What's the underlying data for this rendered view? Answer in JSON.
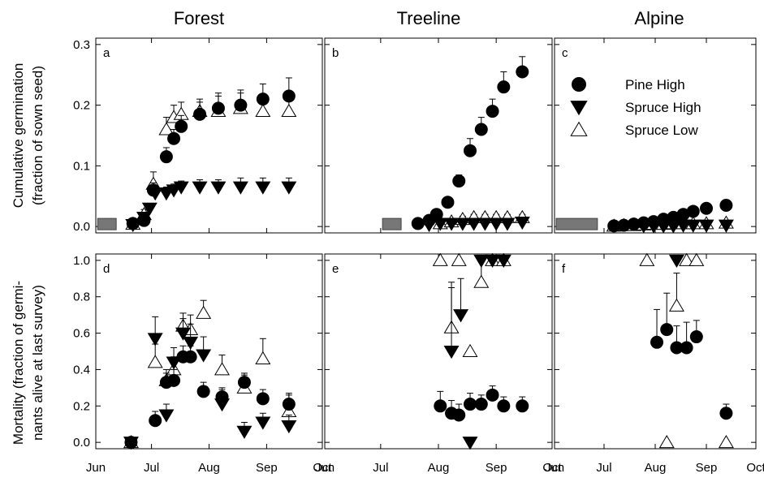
{
  "chart_data": {
    "type": "scatter",
    "columns": [
      "Forest",
      "Treeline",
      "Alpine"
    ],
    "x_ticks": [
      "Jun",
      "Jul",
      "Aug",
      "Sep",
      "Oct"
    ],
    "x_tick_days": [
      152,
      182,
      213,
      244,
      274
    ],
    "xlim": [
      152,
      274
    ],
    "rows": [
      {
        "ylabel_lines": [
          "Cumulative germination",
          "(fraction of sown seed)"
        ],
        "ylim": [
          0,
          0.3
        ],
        "yticks": [
          0.0,
          0.1,
          0.2,
          0.3
        ],
        "ytick_labels": [
          "0.0",
          "0.1",
          "0.2",
          "0.3"
        ]
      },
      {
        "ylabel_lines": [
          "Mortality (fraction of germi-",
          "nants alive at last survey)"
        ],
        "ylim": [
          0,
          1.0
        ],
        "yticks": [
          0.0,
          0.2,
          0.4,
          0.6,
          0.8,
          1.0
        ],
        "ytick_labels": [
          "0.0",
          "0.2",
          "0.4",
          "0.6",
          "0.8",
          "1.0"
        ]
      }
    ],
    "legend": {
      "placement": "panel c, top-right",
      "entries": [
        {
          "label": "Pine High",
          "marker": "circle-filled"
        },
        {
          "label": "Spruce High",
          "marker": "triangle-down-filled"
        },
        {
          "label": "Spruce Low",
          "marker": "triangle-up-open"
        }
      ]
    },
    "panels": [
      {
        "label": "a",
        "row": 0,
        "col": 0,
        "sowing_period": [
          153,
          163
        ],
        "series": [
          {
            "name": "Pine High",
            "points": [
              [
                172,
                0.005,
                0.004
              ],
              [
                178,
                0.01,
                0.005
              ],
              [
                183,
                0.06,
                0.012
              ],
              [
                190,
                0.115,
                0.015
              ],
              [
                194,
                0.145,
                0.015
              ],
              [
                198,
                0.165,
                0.018
              ],
              [
                208,
                0.185,
                0.02
              ],
              [
                218,
                0.195,
                0.025
              ],
              [
                230,
                0.2,
                0.025
              ],
              [
                242,
                0.21,
                0.025
              ],
              [
                256,
                0.215,
                0.03
              ]
            ]
          },
          {
            "name": "Spruce High",
            "points": [
              [
                172,
                0.003,
                0.003
              ],
              [
                178,
                0.015,
                0.005
              ],
              [
                181,
                0.03,
                0.006
              ],
              [
                184,
                0.055,
                0.01
              ],
              [
                190,
                0.055,
                0.01
              ],
              [
                194,
                0.06,
                0.01
              ],
              [
                198,
                0.065,
                0.01
              ],
              [
                208,
                0.065,
                0.012
              ],
              [
                218,
                0.065,
                0.012
              ],
              [
                230,
                0.065,
                0.015
              ],
              [
                242,
                0.065,
                0.015
              ],
              [
                256,
                0.065,
                0.015
              ]
            ]
          },
          {
            "name": "Spruce Low",
            "points": [
              [
                172,
                0.004,
                0.003
              ],
              [
                178,
                0.02,
                0.008
              ],
              [
                183,
                0.07,
                0.02
              ],
              [
                190,
                0.16,
                0.02
              ],
              [
                194,
                0.18,
                0.02
              ],
              [
                198,
                0.185,
                0.02
              ],
              [
                208,
                0.19,
                0.02
              ],
              [
                218,
                0.19,
                0.025
              ],
              [
                230,
                0.195,
                0.025
              ],
              [
                242,
                0.19,
                0.025
              ],
              [
                256,
                0.19,
                0.03
              ]
            ]
          }
        ]
      },
      {
        "label": "b",
        "row": 0,
        "col": 1,
        "sowing_period": [
          183,
          193
        ],
        "series": [
          {
            "name": "Pine High",
            "points": [
              [
                202,
                0.005,
                0.003
              ],
              [
                208,
                0.01,
                0.005
              ],
              [
                212,
                0.02,
                0.006
              ],
              [
                218,
                0.04,
                0.008
              ],
              [
                224,
                0.075,
                0.01
              ],
              [
                230,
                0.125,
                0.02
              ],
              [
                236,
                0.16,
                0.02
              ],
              [
                242,
                0.19,
                0.02
              ],
              [
                248,
                0.23,
                0.025
              ],
              [
                258,
                0.255,
                0.025
              ]
            ]
          },
          {
            "name": "Spruce High",
            "points": [
              [
                208,
                0.003,
                0.002
              ],
              [
                214,
                0.005,
                0.003
              ],
              [
                220,
                0.005,
                0.003
              ],
              [
                226,
                0.005,
                0.003
              ],
              [
                232,
                0.005,
                0.003
              ],
              [
                238,
                0.005,
                0.003
              ],
              [
                244,
                0.005,
                0.003
              ],
              [
                250,
                0.005,
                0.003
              ],
              [
                258,
                0.007,
                0.003
              ]
            ]
          },
          {
            "name": "Spruce Low",
            "points": [
              [
                214,
                0.005,
                0.003
              ],
              [
                220,
                0.008,
                0.004
              ],
              [
                226,
                0.012,
                0.005
              ],
              [
                232,
                0.015,
                0.005
              ],
              [
                238,
                0.015,
                0.005
              ],
              [
                244,
                0.015,
                0.005
              ],
              [
                250,
                0.015,
                0.005
              ],
              [
                258,
                0.015,
                0.005
              ]
            ]
          }
        ]
      },
      {
        "label": "c",
        "row": 0,
        "col": 2,
        "sowing_period": [
          153,
          178
        ],
        "series": [
          {
            "name": "Pine High",
            "points": [
              [
                188,
                0.001,
                0.001
              ],
              [
                194,
                0.002,
                0.001
              ],
              [
                200,
                0.004,
                0.002
              ],
              [
                206,
                0.006,
                0.002
              ],
              [
                212,
                0.008,
                0.003
              ],
              [
                218,
                0.012,
                0.003
              ],
              [
                224,
                0.015,
                0.004
              ],
              [
                230,
                0.02,
                0.004
              ],
              [
                236,
                0.025,
                0.005
              ],
              [
                244,
                0.03,
                0.005
              ],
              [
                256,
                0.035,
                0.006
              ]
            ]
          },
          {
            "name": "Spruce High",
            "points": [
              [
                206,
                0.001,
                0.001
              ],
              [
                212,
                0.001,
                0.001
              ],
              [
                218,
                0.001,
                0.001
              ],
              [
                224,
                0.001,
                0.001
              ],
              [
                230,
                0.002,
                0.001
              ],
              [
                236,
                0.002,
                0.001
              ],
              [
                244,
                0.002,
                0.001
              ],
              [
                256,
                0.002,
                0.001
              ]
            ]
          },
          {
            "name": "Spruce Low",
            "points": [
              [
                188,
                0.001,
                0.001
              ],
              [
                194,
                0.002,
                0.001
              ],
              [
                200,
                0.002,
                0.001
              ],
              [
                206,
                0.003,
                0.001
              ],
              [
                212,
                0.004,
                0.002
              ],
              [
                218,
                0.004,
                0.002
              ],
              [
                224,
                0.005,
                0.002
              ],
              [
                230,
                0.005,
                0.002
              ],
              [
                236,
                0.005,
                0.002
              ],
              [
                244,
                0.005,
                0.002
              ],
              [
                256,
                0.006,
                0.002
              ]
            ]
          }
        ]
      },
      {
        "label": "d",
        "row": 1,
        "col": 0,
        "series": [
          {
            "name": "Pine High",
            "points": [
              [
                171,
                0.0,
                0.0
              ],
              [
                184,
                0.12,
                0.05
              ],
              [
                190,
                0.33,
                0.05
              ],
              [
                194,
                0.34,
                0.06
              ],
              [
                199,
                0.47,
                0.06
              ],
              [
                203,
                0.47,
                0.06
              ],
              [
                210,
                0.28,
                0.05
              ],
              [
                220,
                0.25,
                0.05
              ],
              [
                232,
                0.33,
                0.05
              ],
              [
                242,
                0.24,
                0.05
              ],
              [
                256,
                0.21,
                0.05
              ]
            ]
          },
          {
            "name": "Spruce High",
            "points": [
              [
                171,
                0.0,
                0.0
              ],
              [
                184,
                0.57,
                0.12
              ],
              [
                190,
                0.15,
                0.06
              ],
              [
                194,
                0.44,
                0.08
              ],
              [
                199,
                0.6,
                0.08
              ],
              [
                203,
                0.55,
                0.1
              ],
              [
                210,
                0.48,
                0.1
              ],
              [
                220,
                0.21,
                0.08
              ],
              [
                232,
                0.06,
                0.05
              ],
              [
                242,
                0.11,
                0.05
              ],
              [
                256,
                0.09,
                0.06
              ]
            ]
          },
          {
            "name": "Spruce Low",
            "points": [
              [
                171,
                0.0,
                0.0
              ],
              [
                184,
                0.44,
                0.1
              ],
              [
                190,
                0.34,
                0.06
              ],
              [
                194,
                0.4,
                0.07
              ],
              [
                199,
                0.64,
                0.07
              ],
              [
                203,
                0.62,
                0.08
              ],
              [
                210,
                0.71,
                0.07
              ],
              [
                220,
                0.4,
                0.08
              ],
              [
                232,
                0.3,
                0.07
              ],
              [
                242,
                0.46,
                0.11
              ],
              [
                256,
                0.17,
                0.1
              ]
            ]
          }
        ]
      },
      {
        "label": "e",
        "row": 1,
        "col": 1,
        "series": [
          {
            "name": "Pine High",
            "points": [
              [
                214,
                0.2,
                0.08
              ],
              [
                220,
                0.16,
                0.07
              ],
              [
                224,
                0.15,
                0.06
              ],
              [
                230,
                0.21,
                0.06
              ],
              [
                236,
                0.21,
                0.05
              ],
              [
                242,
                0.26,
                0.05
              ],
              [
                248,
                0.2,
                0.05
              ],
              [
                258,
                0.2,
                0.05
              ]
            ]
          },
          {
            "name": "Spruce High",
            "points": [
              [
                220,
                0.5,
                0.35
              ],
              [
                225,
                0.7,
                0.2
              ],
              [
                230,
                0.0,
                0.0
              ],
              [
                236,
                1.0,
                0.0
              ],
              [
                242,
                1.0,
                0.0
              ],
              [
                248,
                1.0,
                0.0
              ]
            ]
          },
          {
            "name": "Spruce Low",
            "points": [
              [
                214,
                1.0,
                0.0
              ],
              [
                220,
                0.63,
                0.25
              ],
              [
                224,
                1.0,
                0.0
              ],
              [
                230,
                0.5,
                0.0
              ],
              [
                236,
                0.88,
                0.12
              ],
              [
                242,
                1.0,
                0.0
              ],
              [
                248,
                1.0,
                0.0
              ]
            ]
          }
        ]
      },
      {
        "label": "f",
        "row": 1,
        "col": 2,
        "series": [
          {
            "name": "Pine High",
            "points": [
              [
                214,
                0.55,
                0.18
              ],
              [
                220,
                0.62,
                0.2
              ],
              [
                226,
                0.52,
                0.12
              ],
              [
                232,
                0.52,
                0.14
              ],
              [
                238,
                0.58,
                0.09
              ],
              [
                256,
                0.16,
                0.05
              ]
            ]
          },
          {
            "name": "Spruce High",
            "points": [
              [
                226,
                1.0,
                0.0
              ]
            ]
          },
          {
            "name": "Spruce Low",
            "points": [
              [
                208,
                1.0,
                0.0
              ],
              [
                220,
                0.0,
                0.0
              ],
              [
                226,
                0.75,
                0.18
              ],
              [
                232,
                1.0,
                0.0
              ],
              [
                238,
                1.0,
                0.0
              ],
              [
                256,
                0.0,
                0.0
              ]
            ]
          }
        ]
      }
    ]
  }
}
